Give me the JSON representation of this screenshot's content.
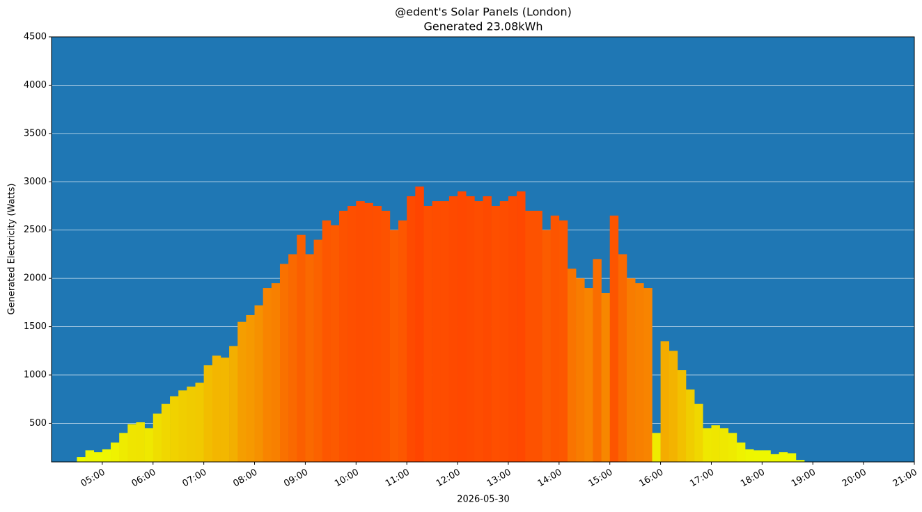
{
  "chart_data": {
    "type": "bar",
    "title": "@edent's Solar Panels (London)",
    "subtitle": "Generated 23.08kWh",
    "x_label": "2026-05-30",
    "y_label": "Generated Electricity (Watts)",
    "background": "#1f77b4",
    "grid": true,
    "color_scale": [
      "#eeff00",
      "#f0d000",
      "#f5a000",
      "#fa6a00",
      "#ff4500"
    ],
    "bar_minutes": 10,
    "x": [
      "04:30",
      "04:40",
      "04:50",
      "05:00",
      "05:10",
      "05:20",
      "05:30",
      "05:40",
      "05:50",
      "06:00",
      "06:10",
      "06:20",
      "06:30",
      "06:40",
      "06:50",
      "07:00",
      "07:10",
      "07:20",
      "07:30",
      "07:40",
      "07:50",
      "08:00",
      "08:10",
      "08:20",
      "08:30",
      "08:40",
      "08:50",
      "09:00",
      "09:10",
      "09:20",
      "09:30",
      "09:40",
      "09:50",
      "10:00",
      "10:10",
      "10:20",
      "10:30",
      "10:40",
      "10:50",
      "11:00",
      "11:10",
      "11:20",
      "11:30",
      "11:40",
      "11:50",
      "12:00",
      "12:10",
      "12:20",
      "12:30",
      "12:40",
      "12:50",
      "13:00",
      "13:10",
      "13:20",
      "13:30",
      "13:40",
      "13:50",
      "14:00",
      "14:10",
      "14:20",
      "14:30",
      "14:40",
      "14:50",
      "15:00",
      "15:10",
      "15:20",
      "15:30",
      "15:40",
      "15:50",
      "16:00",
      "16:10",
      "16:20",
      "16:30",
      "16:40",
      "16:50",
      "17:00",
      "17:10",
      "17:20",
      "17:30",
      "17:40",
      "17:50",
      "18:00",
      "18:10",
      "18:20",
      "18:30",
      "18:40"
    ],
    "values": [
      150,
      220,
      200,
      230,
      300,
      400,
      490,
      510,
      450,
      600,
      700,
      780,
      840,
      880,
      920,
      1100,
      1200,
      1180,
      1300,
      1550,
      1620,
      1720,
      1900,
      1950,
      2150,
      2250,
      2450,
      2250,
      2400,
      2600,
      2550,
      2700,
      2750,
      2800,
      2780,
      2750,
      2700,
      2500,
      2600,
      2850,
      2950,
      2750,
      2800,
      2800,
      2850,
      2900,
      2850,
      2800,
      2850,
      2750,
      2800,
      2850,
      2900,
      2700,
      2700,
      2500,
      2650,
      2600,
      2100,
      2000,
      1900,
      2200,
      1850,
      2650,
      2250,
      2000,
      1950,
      1900,
      400,
      1350,
      1250,
      1050,
      850,
      700,
      450,
      480,
      450,
      400,
      300,
      230,
      220,
      220,
      180,
      200,
      190,
      120
    ],
    "xlim": [
      "04:00",
      "21:00"
    ],
    "xticks": [
      "05:00",
      "06:00",
      "07:00",
      "08:00",
      "09:00",
      "10:00",
      "11:00",
      "12:00",
      "13:00",
      "14:00",
      "15:00",
      "16:00",
      "17:00",
      "18:00",
      "19:00",
      "20:00",
      "21:00"
    ],
    "ylim": [
      100,
      4500
    ],
    "yticks": [
      500,
      1000,
      1500,
      2000,
      2500,
      3000,
      3500,
      4000,
      4500
    ]
  }
}
